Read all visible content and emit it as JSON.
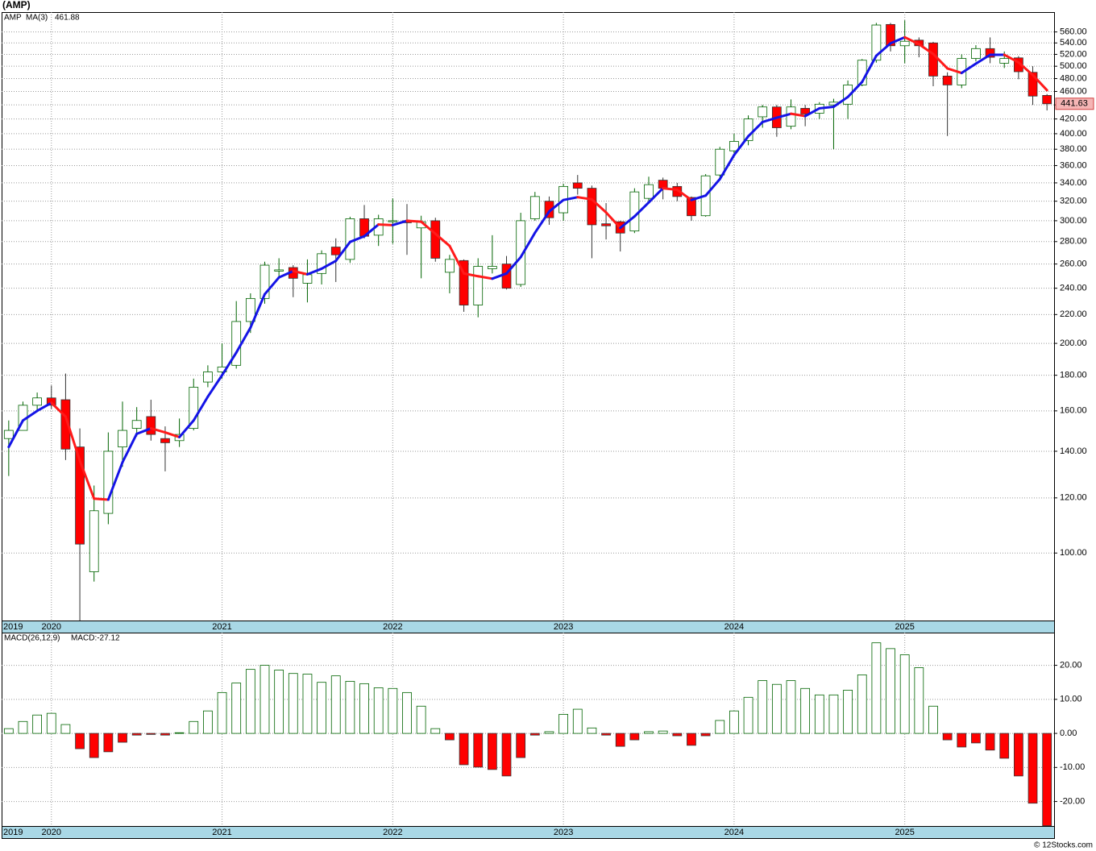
{
  "chart_data": [
    {
      "type": "candlestick",
      "title": "(AMP)",
      "ticker": "AMP",
      "log_scale": true,
      "grid": true,
      "up_color": "#006400",
      "down_color": "#ff0000",
      "last_label": "441.63",
      "categories": [
        "2019",
        null,
        null,
        "2020",
        null,
        null,
        null,
        null,
        null,
        null,
        null,
        null,
        null,
        null,
        null,
        "2021",
        null,
        null,
        null,
        null,
        null,
        null,
        null,
        null,
        null,
        null,
        null,
        "2022",
        null,
        null,
        null,
        null,
        null,
        null,
        null,
        null,
        null,
        null,
        null,
        "2023",
        null,
        null,
        null,
        null,
        null,
        null,
        null,
        null,
        null,
        null,
        null,
        "2024",
        null,
        null,
        null,
        null,
        null,
        null,
        null,
        null,
        null,
        null,
        null,
        "2025",
        null,
        null,
        null,
        null,
        null,
        null,
        null,
        null,
        null,
        null
      ],
      "open": [
        146,
        150,
        163,
        167,
        166,
        142,
        94,
        114,
        142,
        151,
        157,
        146,
        145,
        151,
        176,
        182,
        186,
        215,
        232,
        254,
        257,
        244,
        252,
        275,
        264,
        302,
        286,
        299,
        300,
        293,
        300,
        253,
        263,
        227,
        256,
        260,
        243,
        302,
        320,
        308,
        340,
        334,
        297,
        299,
        290,
        323,
        343,
        336,
        324,
        305,
        349,
        378,
        391,
        423,
        437,
        410,
        435,
        428,
        440,
        441,
        470,
        510,
        574,
        535,
        545,
        540,
        484,
        470,
        513,
        530,
        505,
        514,
        490,
        454
      ],
      "high": [
        155,
        165,
        170,
        174,
        181,
        151,
        125,
        149,
        165,
        162,
        166,
        152,
        156,
        178,
        186,
        200,
        230,
        236,
        262,
        265,
        259,
        264,
        272,
        283,
        304,
        316,
        306,
        323,
        317,
        305,
        303,
        268,
        264,
        265,
        286,
        267,
        308,
        330,
        325,
        339,
        349,
        337,
        318,
        300,
        334,
        347,
        346,
        340,
        325,
        350,
        383,
        400,
        425,
        440,
        440,
        448,
        440,
        444,
        449,
        477,
        512,
        577,
        577,
        582,
        550,
        542,
        490,
        520,
        536,
        550,
        525,
        517,
        500,
        456
      ],
      "low": [
        129,
        150,
        160,
        161,
        136,
        80,
        91,
        110,
        133,
        147,
        145,
        131,
        142,
        150,
        173,
        178,
        184,
        207,
        228,
        248,
        233,
        229,
        243,
        245,
        261,
        283,
        276,
        278,
        268,
        248,
        262,
        236,
        222,
        218,
        252,
        239,
        241,
        300,
        296,
        300,
        327,
        265,
        282,
        271,
        288,
        318,
        322,
        320,
        300,
        304,
        345,
        375,
        385,
        408,
        396,
        406,
        410,
        420,
        380,
        420,
        468,
        506,
        525,
        505,
        515,
        468,
        397,
        465,
        508,
        505,
        497,
        479,
        440,
        432
      ],
      "close": [
        150,
        163,
        167,
        163,
        141,
        103,
        115,
        140,
        150,
        155,
        148,
        144,
        148,
        173,
        182,
        185,
        215,
        232,
        259,
        255,
        248,
        251,
        269,
        268,
        302,
        285,
        302,
        300,
        298,
        299,
        265,
        264,
        227,
        258,
        258,
        240,
        300,
        325,
        303,
        336,
        334,
        296,
        295,
        288,
        330,
        338,
        334,
        325,
        305,
        348,
        380,
        390,
        420,
        437,
        408,
        437,
        427,
        441,
        444,
        470,
        510,
        573,
        535,
        543,
        535,
        484,
        470,
        513,
        530,
        515,
        513,
        491,
        453,
        441.63
      ],
      "ma": {
        "name": "MA(3)",
        "label": "461.88",
        "rising_color": "#1414e6",
        "falling_color": "#ff1a1a",
        "values": [
          142,
          155,
          160,
          164.3,
          157,
          135.7,
          119.7,
          119.3,
          135,
          148.3,
          151,
          149,
          146.7,
          155,
          167.7,
          180,
          194,
          210.7,
          235.3,
          248.7,
          254,
          251.3,
          256,
          262.7,
          279.7,
          285,
          296.3,
          295.7,
          300,
          299,
          287.3,
          276,
          252,
          249.7,
          247.7,
          252,
          266,
          288.3,
          309.3,
          321.3,
          324.3,
          322,
          308.3,
          293,
          304.3,
          318.7,
          334,
          332.3,
          321.3,
          326,
          344.3,
          372.7,
          396.7,
          415.7,
          421.7,
          427.3,
          424,
          435,
          437.3,
          451.7,
          474.7,
          517.7,
          539.3,
          550.3,
          537.7,
          520.7,
          496.3,
          489,
          504.3,
          519.3,
          519.3,
          506.3,
          485.7,
          461.88
        ]
      },
      "ylim": [
        80,
        598
      ],
      "yticks": [
        {
          "value": 100,
          "label": "100.00"
        },
        {
          "value": 120,
          "label": "120.00"
        },
        {
          "value": 140,
          "label": "140.00"
        },
        {
          "value": 160,
          "label": "160.00"
        },
        {
          "value": 180,
          "label": "180.00"
        },
        {
          "value": 200,
          "label": "200.00"
        },
        {
          "value": 220,
          "label": "220.00"
        },
        {
          "value": 240,
          "label": "240.00"
        },
        {
          "value": 260,
          "label": "260.00"
        },
        {
          "value": 280,
          "label": "280.00"
        },
        {
          "value": 300,
          "label": "300.00"
        },
        {
          "value": 320,
          "label": "320.00"
        },
        {
          "value": 340,
          "label": "340.00"
        },
        {
          "value": 360,
          "label": "360.00"
        },
        {
          "value": 380,
          "label": "380.00"
        },
        {
          "value": 400,
          "label": "400.00"
        },
        {
          "value": 420,
          "label": "420.00"
        },
        {
          "value": 440,
          "label": "440.00"
        },
        {
          "value": 460,
          "label": "460.00"
        },
        {
          "value": 480,
          "label": "480.00"
        },
        {
          "value": 500,
          "label": "500.00"
        },
        {
          "value": 520,
          "label": "520.00"
        },
        {
          "value": 540,
          "label": "540.00"
        },
        {
          "value": 560,
          "label": "560.00"
        }
      ]
    },
    {
      "type": "macd",
      "name": "MACD(26,12,9)",
      "value_label": "MACD:-27.12",
      "grid": true,
      "up_color": "#006400",
      "down_color": "#ff0000",
      "categories": [
        "2019",
        null,
        null,
        "2020",
        null,
        null,
        null,
        null,
        null,
        null,
        null,
        null,
        null,
        null,
        null,
        "2021",
        null,
        null,
        null,
        null,
        null,
        null,
        null,
        null,
        null,
        null,
        null,
        "2022",
        null,
        null,
        null,
        null,
        null,
        null,
        null,
        null,
        null,
        null,
        null,
        "2023",
        null,
        null,
        null,
        null,
        null,
        null,
        null,
        null,
        null,
        null,
        null,
        "2024",
        null,
        null,
        null,
        null,
        null,
        null,
        null,
        null,
        null,
        null,
        null,
        "2025",
        null,
        null,
        null,
        null,
        null,
        null,
        null,
        null,
        null,
        null
      ],
      "values": [
        1.4,
        3.5,
        5.4,
        5.9,
        2.6,
        -4.5,
        -7.1,
        -5.4,
        -2.6,
        -0.5,
        -0.3,
        -0.5,
        0.2,
        3.5,
        6.6,
        12,
        14.8,
        18.8,
        20,
        18.6,
        17.6,
        17.4,
        15,
        16.9,
        15.3,
        14.6,
        13.4,
        13.2,
        12,
        8,
        1.4,
        -1.9,
        -9.2,
        -9.9,
        -10.6,
        -12.5,
        -7.1,
        -0.5,
        0.5,
        5.6,
        7.1,
        1.6,
        -0.5,
        -3.8,
        -1.9,
        0.5,
        0.7,
        -0.7,
        -3.5,
        -0.7,
        3.8,
        6.6,
        10.6,
        15.5,
        14.4,
        15.5,
        13.2,
        11.3,
        11.3,
        12.7,
        17.2,
        26.6,
        24.9,
        23.1,
        19.3,
        8,
        -1.9,
        -4,
        -2.8,
        -4.9,
        -7.3,
        -12.5,
        -20.5,
        -27.12
      ],
      "ylim": [
        -27.2,
        29.6
      ],
      "yticks": [
        {
          "value": -20,
          "label": "-20.00"
        },
        {
          "value": -10,
          "label": "-10.00"
        },
        {
          "value": 0,
          "label": "0.00"
        },
        {
          "value": 10,
          "label": "10.00"
        },
        {
          "value": 20,
          "label": "20.00"
        }
      ]
    }
  ],
  "footer": "© 12Stocks.com"
}
